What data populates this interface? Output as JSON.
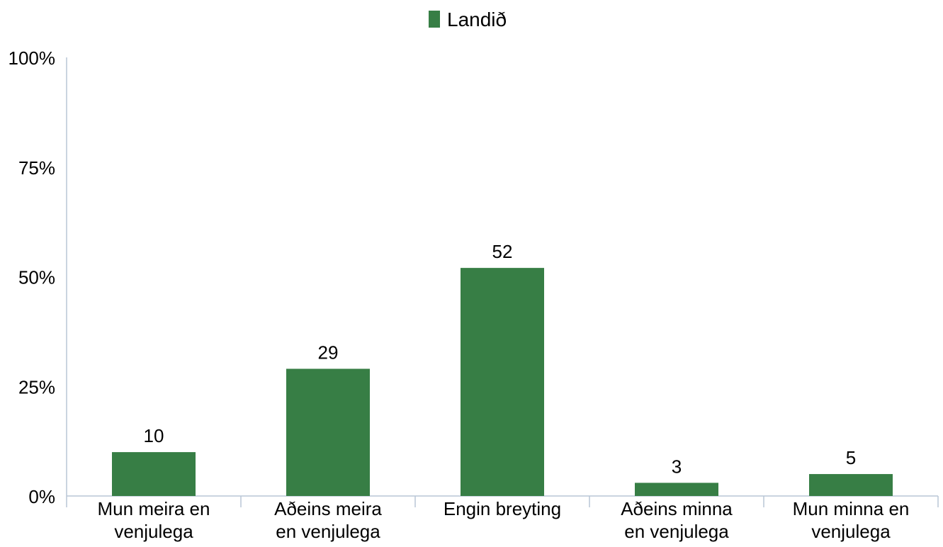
{
  "chart_data": {
    "type": "bar",
    "categories": [
      [
        "Mun meira en",
        "venjulega"
      ],
      [
        "Aðeins meira",
        "en venjulega"
      ],
      [
        "Engin breyting"
      ],
      [
        "Aðeins minna",
        "en venjulega"
      ],
      [
        "Mun minna en",
        "venjulega"
      ]
    ],
    "series": [
      {
        "name": "Landið",
        "values": [
          10,
          29,
          52,
          3,
          5
        ],
        "color": "#377e45"
      }
    ],
    "data_labels": [
      "10",
      "29",
      "52",
      "3",
      "5"
    ],
    "y_ticks": [
      {
        "value": 0,
        "label": "0%"
      },
      {
        "value": 25,
        "label": "25%"
      },
      {
        "value": 50,
        "label": "50%"
      },
      {
        "value": 75,
        "label": "75%"
      },
      {
        "value": 100,
        "label": "100%"
      }
    ],
    "ylim": [
      0,
      100
    ],
    "grid": false,
    "legend_position": "top-center",
    "axis_color": "#b9c6d6"
  }
}
